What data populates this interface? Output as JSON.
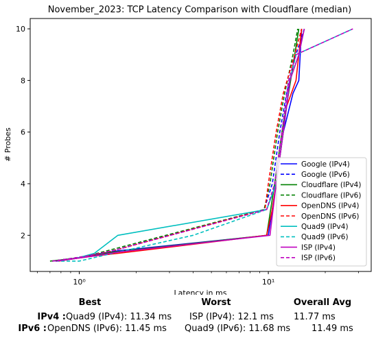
{
  "chart_data": {
    "type": "line",
    "title": "November_2023: TCP Latency Comparison with Cloudflare (median)",
    "xlabel": "Latency in ms",
    "ylabel": "# Probes",
    "xscale": "log",
    "xlim": [
      0.55,
      35
    ],
    "ylim": [
      0.6,
      10.4
    ],
    "xticks": [
      1,
      10
    ],
    "xtick_labels": [
      "10⁰",
      "10¹"
    ],
    "yticks": [
      2,
      4,
      6,
      8,
      10
    ],
    "grid": false,
    "legend_position": "lower-right",
    "series": [
      {
        "name": "Google (IPv4)",
        "color": "#0000ff",
        "dash": "solid",
        "points": [
          [
            0.75,
            1
          ],
          [
            0.95,
            1.1
          ],
          [
            1.2,
            1.25
          ],
          [
            1.6,
            1.4
          ],
          [
            10,
            2
          ],
          [
            11,
            4
          ],
          [
            12,
            6
          ],
          [
            13.5,
            7.5
          ],
          [
            14.5,
            8
          ],
          [
            15,
            10
          ]
        ]
      },
      {
        "name": "Google (IPv6)",
        "color": "#0000ff",
        "dash": "dashed",
        "points": [
          [
            0.72,
            1
          ],
          [
            0.9,
            1.1
          ],
          [
            1.1,
            1.2
          ],
          [
            1.5,
            1.4
          ],
          [
            9.5,
            3
          ],
          [
            10.5,
            4
          ],
          [
            11.5,
            6
          ],
          [
            12.5,
            7.5
          ],
          [
            14,
            9
          ],
          [
            15.5,
            10
          ]
        ]
      },
      {
        "name": "Cloudflare (IPv4)",
        "color": "#008000",
        "dash": "solid",
        "points": [
          [
            0.7,
            1
          ],
          [
            0.92,
            1.1
          ],
          [
            1.15,
            1.2
          ],
          [
            1.5,
            1.35
          ],
          [
            9.8,
            2
          ],
          [
            10.8,
            4
          ],
          [
            11.8,
            6
          ],
          [
            12.8,
            7.5
          ],
          [
            13.8,
            9
          ],
          [
            14.5,
            10
          ]
        ]
      },
      {
        "name": "Cloudflare (IPv6)",
        "color": "#008000",
        "dash": "dashed",
        "points": [
          [
            0.72,
            1
          ],
          [
            0.9,
            1.1
          ],
          [
            1.1,
            1.2
          ],
          [
            1.4,
            1.4
          ],
          [
            9.5,
            3
          ],
          [
            10.2,
            4
          ],
          [
            11.2,
            6
          ],
          [
            12.2,
            7.5
          ],
          [
            13.5,
            9
          ],
          [
            14.3,
            10
          ]
        ]
      },
      {
        "name": "OpenDNS (IPv4)",
        "color": "#ff0000",
        "dash": "solid",
        "points": [
          [
            0.75,
            1
          ],
          [
            0.95,
            1.1
          ],
          [
            1.2,
            1.2
          ],
          [
            1.6,
            1.3
          ],
          [
            9.8,
            2
          ],
          [
            10.5,
            3
          ],
          [
            11.5,
            5
          ],
          [
            12.5,
            7
          ],
          [
            14,
            8
          ],
          [
            15,
            10
          ]
        ]
      },
      {
        "name": "OpenDNS (IPv6)",
        "color": "#ff0000",
        "dash": "dashed",
        "points": [
          [
            0.78,
            1
          ],
          [
            0.95,
            1.1
          ],
          [
            1.1,
            1.2
          ],
          [
            1.5,
            1.4
          ],
          [
            9.6,
            3
          ],
          [
            10,
            4
          ],
          [
            11,
            6
          ],
          [
            12,
            7.5
          ],
          [
            13.8,
            9
          ],
          [
            15,
            10
          ]
        ]
      },
      {
        "name": "Quad9 (IPv4)",
        "color": "#00bfbf",
        "dash": "solid",
        "points": [
          [
            0.75,
            1
          ],
          [
            0.95,
            1.1
          ],
          [
            1.2,
            1.3
          ],
          [
            1.6,
            2
          ],
          [
            9.8,
            3
          ],
          [
            11,
            4
          ],
          [
            12,
            6
          ],
          [
            13,
            8
          ],
          [
            14.5,
            9
          ],
          [
            15.5,
            10
          ]
        ]
      },
      {
        "name": "Quad9 (IPv6)",
        "color": "#00bfbf",
        "dash": "dashed",
        "points": [
          [
            0.75,
            1
          ],
          [
            1.0,
            1
          ],
          [
            1.5,
            1.3
          ],
          [
            4,
            2
          ],
          [
            9.8,
            3
          ],
          [
            11,
            4
          ],
          [
            12,
            6
          ],
          [
            13,
            8
          ],
          [
            14,
            9
          ],
          [
            28,
            10
          ]
        ]
      },
      {
        "name": "ISP (IPv4)",
        "color": "#bf00bf",
        "dash": "solid",
        "points": [
          [
            0.75,
            1
          ],
          [
            0.95,
            1.1
          ],
          [
            1.2,
            1.2
          ],
          [
            1.6,
            1.35
          ],
          [
            10.2,
            2
          ],
          [
            11,
            4
          ],
          [
            12,
            6
          ],
          [
            13,
            8
          ],
          [
            14.5,
            9
          ],
          [
            15.5,
            10
          ]
        ]
      },
      {
        "name": "ISP (IPv6)",
        "color": "#bf00bf",
        "dash": "dashed",
        "points": [
          [
            0.72,
            1
          ],
          [
            0.9,
            1.1
          ],
          [
            1.1,
            1.2
          ],
          [
            1.5,
            1.4
          ],
          [
            9.8,
            3
          ],
          [
            10.8,
            4
          ],
          [
            11.8,
            6
          ],
          [
            12.8,
            8
          ],
          [
            14,
            9
          ],
          [
            28,
            10
          ]
        ]
      }
    ]
  },
  "stats": {
    "headers": {
      "best": "Best",
      "worst": "Worst",
      "avg": "Overall Avg"
    },
    "ipv4": {
      "label": "IPv4 :",
      "best": "Quad9 (IPv4): 11.34 ms",
      "worst": "ISP (IPv4): 12.1 ms",
      "avg": "11.77 ms"
    },
    "ipv6": {
      "label": "IPv6 :",
      "best": "OpenDNS (IPv6): 11.45 ms",
      "worst": "Quad9 (IPv6): 11.68 ms",
      "avg": "11.49 ms"
    }
  }
}
